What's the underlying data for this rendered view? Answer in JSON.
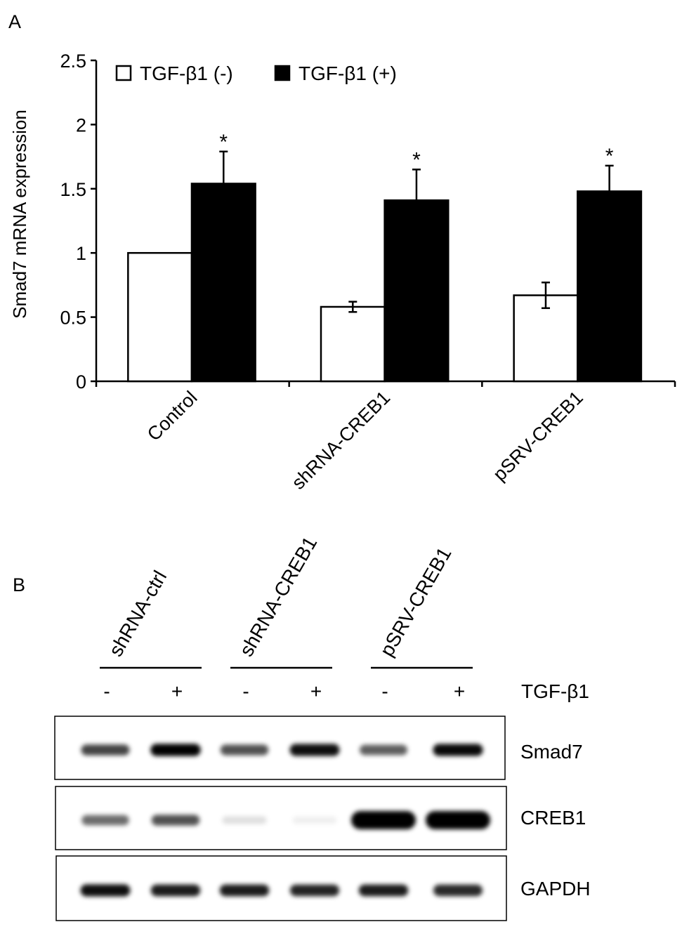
{
  "panels": {
    "a_label": "A",
    "b_label": "B"
  },
  "chart_data": {
    "type": "bar",
    "title": "",
    "xlabel": "",
    "ylabel": "Smad7 mRNA expression",
    "ylim": [
      0,
      2.5
    ],
    "yticks": [
      0,
      0.5,
      1,
      1.5,
      2,
      2.5
    ],
    "ytick_labels": [
      "0",
      "0.5",
      "1",
      "1.5",
      "2",
      "2.5"
    ],
    "categories": [
      "Control",
      "shRNA-CREB1",
      "pSRV-CREB1"
    ],
    "grid": false,
    "legend_position": "top-left",
    "series": [
      {
        "name": "TGF-β1 (-)",
        "fill": "#ffffff",
        "values": [
          1.0,
          0.58,
          0.67
        ],
        "errors": [
          0.0,
          0.04,
          0.1
        ],
        "annotations": [
          "",
          "",
          ""
        ]
      },
      {
        "name": "TGF-β1 (+)",
        "fill": "#000000",
        "values": [
          1.54,
          1.41,
          1.48
        ],
        "errors": [
          0.25,
          0.24,
          0.2
        ],
        "annotations": [
          "*",
          "*",
          "*"
        ]
      }
    ]
  },
  "blot": {
    "groups": [
      "shRNA-ctrl",
      "shRNA-CREB1",
      "pSRV-CREB1"
    ],
    "treatment_label": "TGF-β1",
    "lane_signs": [
      "-",
      "+",
      "-",
      "+",
      "-",
      "+"
    ],
    "rows": [
      {
        "name": "Smad7",
        "intensity": [
          0.7,
          0.95,
          0.65,
          0.9,
          0.6,
          0.92
        ]
      },
      {
        "name": "CREB1",
        "intensity": [
          0.55,
          0.65,
          0.12,
          0.06,
          1.0,
          1.0
        ]
      },
      {
        "name": "GAPDH",
        "intensity": [
          0.9,
          0.85,
          0.85,
          0.82,
          0.85,
          0.8
        ]
      }
    ]
  }
}
